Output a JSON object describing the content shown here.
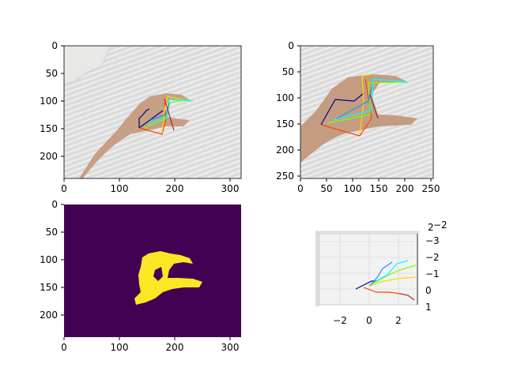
{
  "panels": [
    {
      "kind": "photo",
      "x_ticks": [
        "0",
        "100",
        "200",
        "300"
      ],
      "y_ticks": [
        "0",
        "50",
        "100",
        "150",
        "200"
      ]
    },
    {
      "kind": "photo-crop",
      "x_ticks": [
        "0",
        "50",
        "100",
        "150",
        "200",
        "250"
      ],
      "y_ticks": [
        "0",
        "50",
        "100",
        "150",
        "200",
        "250"
      ]
    },
    {
      "kind": "mask",
      "x_ticks": [
        "0",
        "100",
        "200",
        "300"
      ],
      "y_ticks": [
        "0",
        "50",
        "100",
        "150",
        "200"
      ],
      "background_color": "#440154",
      "mask_color": "#fde725"
    },
    {
      "kind": "3d-skeleton",
      "x_ticks": [
        "−2",
        "0",
        "2"
      ],
      "z_ticks": [
        "1",
        "0",
        "−1",
        "−2",
        "−3"
      ],
      "extra_ticks": [
        "2",
        "−2"
      ]
    }
  ],
  "finger_colors": {
    "palm": "#00008b",
    "thumb": "#ff4500",
    "index": "#ffd700",
    "middle": "#7fff00",
    "ring": "#00ffff",
    "little": "#1e90ff",
    "wrist_link": "#b22222"
  }
}
